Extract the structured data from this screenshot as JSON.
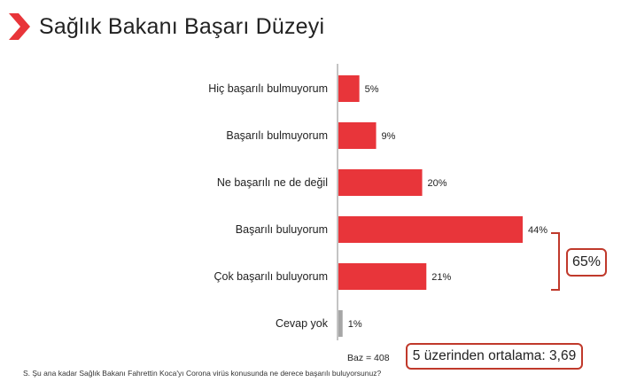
{
  "title": "Sağlık Bakanı Başarı Düzeyi",
  "colors": {
    "accent": "#e8353a",
    "neutral": "#a6a6a6",
    "box_border": "#c0392b"
  },
  "chart_data": {
    "type": "bar",
    "orientation": "horizontal",
    "title": "Sağlık Bakanı Başarı Düzeyi",
    "categories": [
      "Hiç başarılı bulmuyorum",
      "Başarılı bulmuyorum",
      "Ne başarılı ne de değil",
      "Başarılı buluyorum",
      "Çok başarılı buluyorum",
      "Cevap yok"
    ],
    "values": [
      5,
      9,
      20,
      44,
      21,
      1
    ],
    "value_labels": [
      "5%",
      "9%",
      "20%",
      "44%",
      "21%",
      "1%"
    ],
    "bar_colors": [
      "#e8353a",
      "#e8353a",
      "#e8353a",
      "#e8353a",
      "#e8353a",
      "#a6a6a6"
    ],
    "xlim": [
      0,
      44
    ],
    "grid": false,
    "legend": "none"
  },
  "annotations": {
    "bracket_total": "65%",
    "base": "Baz = 408",
    "average": "5 üzerinden ortalama: 3,69"
  },
  "footnote": "S. Şu ana kadar Sağlık Bakanı Fahrettin Koca'yı Corona virüs konusunda ne derece başarılı buluyorsunuz?"
}
